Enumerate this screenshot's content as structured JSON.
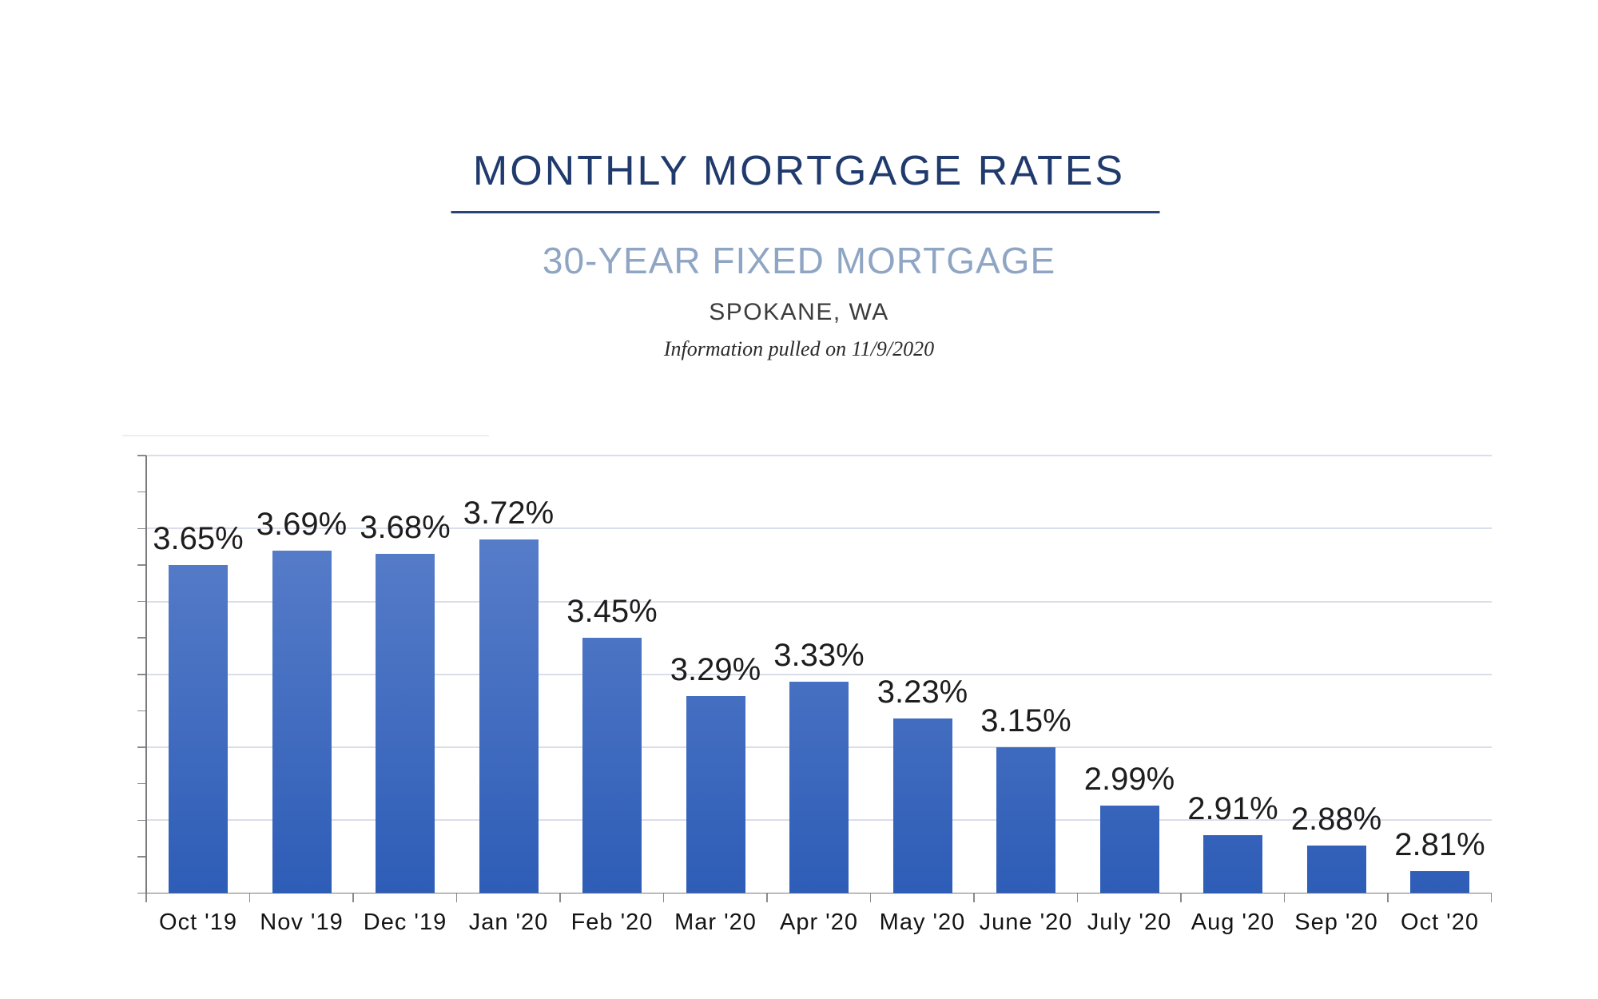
{
  "header": {
    "title": "MONTHLY MORTGAGE RATES",
    "subtitle": "30-YEAR FIXED MORTGAGE",
    "location": "SPOKANE, WA",
    "note": "Information pulled on 11/9/2020"
  },
  "colors": {
    "title": "#203a6d",
    "subtitle": "#8fa5c4",
    "bar_gradient_top": "#6084cd",
    "bar_gradient_bottom": "#2e5db7",
    "gridline": "#daddea",
    "axis": "#7b7b7b"
  },
  "chart_data": {
    "type": "bar",
    "title": "MONTHLY MORTGAGE RATES",
    "subtitle": "30-YEAR FIXED MORTGAGE",
    "xlabel": "",
    "ylabel": "",
    "categories": [
      "Oct '19",
      "Nov '19",
      "Dec '19",
      "Jan '20",
      "Feb '20",
      "Mar '20",
      "Apr '20",
      "May '20",
      "June '20",
      "July '20",
      "Aug '20",
      "Sep '20",
      "Oct '20"
    ],
    "values": [
      3.65,
      3.69,
      3.68,
      3.72,
      3.45,
      3.29,
      3.33,
      3.23,
      3.15,
      2.99,
      2.91,
      2.88,
      2.81
    ],
    "data_labels": [
      "3.65%",
      "3.69%",
      "3.68%",
      "3.72%",
      "3.45%",
      "3.29%",
      "3.33%",
      "3.23%",
      "3.15%",
      "2.99%",
      "2.91%",
      "2.88%",
      "2.81%"
    ],
    "unit": "%",
    "ylim": [
      2.75,
      3.95
    ],
    "gridline_step": 0.2,
    "tick_step": 0.1,
    "grid": true,
    "legend": "none",
    "y_axis_labels_visible": false
  }
}
